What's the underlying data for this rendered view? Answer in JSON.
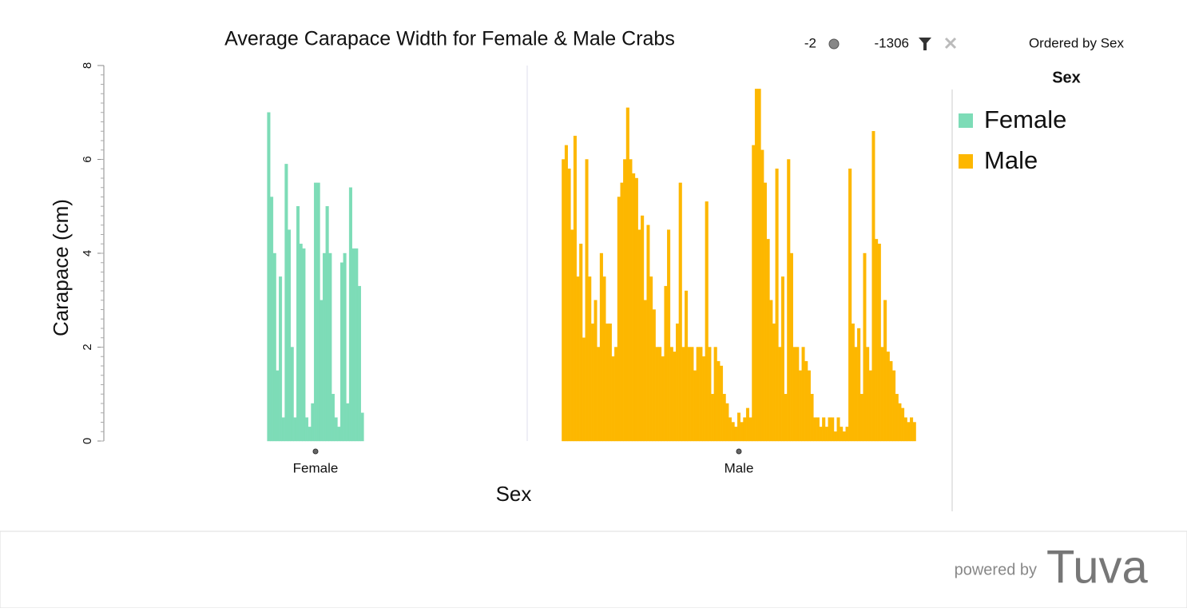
{
  "toolbar": {
    "point_count": "-2",
    "case_count": "-1306",
    "order_note": "Ordered by Sex"
  },
  "footer": {
    "powered_by": "powered by",
    "brand": "Tuva"
  },
  "chart_data": {
    "type": "bar",
    "title": "Average Carapace Width for Female & Male Crabs",
    "x_label": "Sex",
    "y_label": "Carapace (cm)",
    "legend_title": "Sex",
    "ylim": [
      0,
      8
    ],
    "yticks": [
      0,
      2,
      4,
      6,
      8
    ],
    "series": [
      {
        "name": "Female",
        "color": "#7ddcb7",
        "values": [
          7.0,
          5.2,
          4.0,
          1.5,
          3.5,
          0.5,
          5.9,
          4.5,
          2.0,
          0.5,
          5.0,
          4.2,
          4.1,
          0.5,
          0.3,
          0.8,
          5.5,
          5.5,
          3.0,
          4.0,
          5.0,
          4.0,
          1.0,
          0.5,
          0.3,
          3.8,
          4.0,
          0.8,
          5.4,
          4.1,
          4.1,
          3.3,
          0.6
        ]
      },
      {
        "name": "Male",
        "color": "#fdb700",
        "values": [
          6.0,
          6.3,
          5.8,
          4.5,
          6.5,
          3.5,
          4.2,
          2.2,
          6.0,
          3.5,
          2.5,
          3.0,
          2.0,
          4.0,
          3.5,
          2.5,
          2.5,
          1.8,
          2.0,
          5.2,
          5.5,
          6.0,
          7.1,
          6.0,
          5.7,
          5.6,
          4.5,
          4.8,
          3.0,
          4.6,
          3.5,
          2.8,
          2.0,
          2.0,
          1.8,
          3.3,
          4.5,
          2.0,
          1.9,
          2.5,
          5.5,
          2.0,
          3.2,
          2.0,
          2.0,
          1.5,
          2.0,
          2.0,
          1.8,
          5.1,
          2.0,
          1.0,
          2.0,
          1.7,
          1.6,
          1.0,
          0.8,
          0.5,
          0.4,
          0.3,
          0.6,
          0.4,
          0.5,
          0.7,
          0.5,
          6.3,
          7.5,
          7.5,
          6.2,
          5.5,
          4.3,
          3.0,
          2.5,
          5.8,
          2.0,
          3.5,
          1.0,
          6.0,
          4.0,
          2.0,
          2.0,
          1.5,
          2.0,
          1.7,
          1.5,
          1.0,
          0.5,
          0.5,
          0.3,
          0.5,
          0.3,
          0.5,
          0.5,
          0.2,
          0.5,
          0.3,
          0.2,
          0.3,
          5.8,
          2.5,
          2.0,
          2.4,
          1.0,
          4.0,
          2.0,
          1.5,
          6.6,
          4.3,
          4.2,
          2.0,
          3.0,
          1.9,
          1.7,
          1.5,
          1.0,
          0.8,
          0.7,
          0.5,
          0.4,
          0.5,
          0.4
        ]
      }
    ]
  }
}
